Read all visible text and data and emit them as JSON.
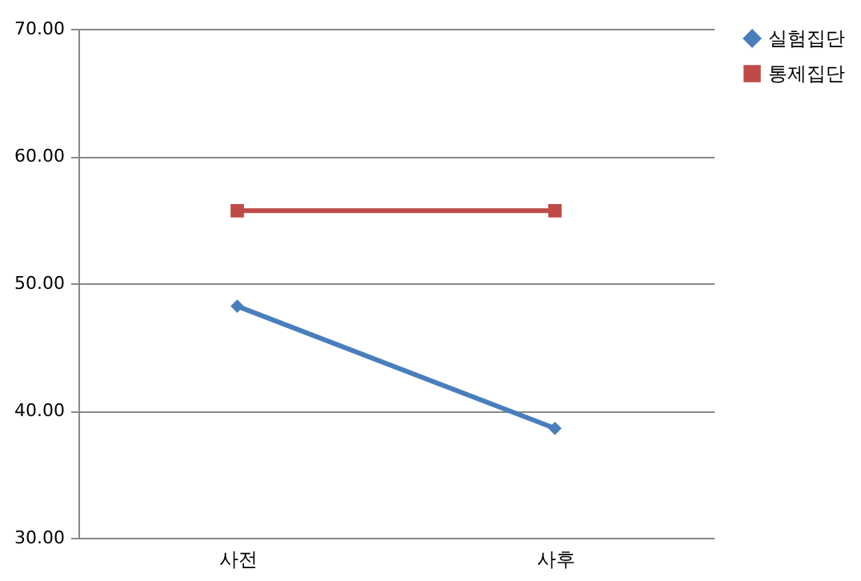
{
  "chart_data": {
    "type": "line",
    "categories": [
      "사전",
      "사후"
    ],
    "series": [
      {
        "name": "실험집단",
        "color": "#4a7ebb",
        "values": [
          48.2,
          38.6
        ],
        "marker": "diamond"
      },
      {
        "name": "통제집단",
        "color": "#be4b48",
        "values": [
          55.7,
          55.7
        ],
        "marker": "square"
      }
    ],
    "ylim": [
      30,
      70
    ],
    "yticks": [
      {
        "value": 30,
        "label": "30.00"
      },
      {
        "value": 40,
        "label": "40.00"
      },
      {
        "value": 50,
        "label": "50.00"
      },
      {
        "value": 60,
        "label": "60.00"
      },
      {
        "value": 70,
        "label": "70.00"
      }
    ],
    "grid": "y",
    "legend": "right",
    "line_style": "solid"
  }
}
